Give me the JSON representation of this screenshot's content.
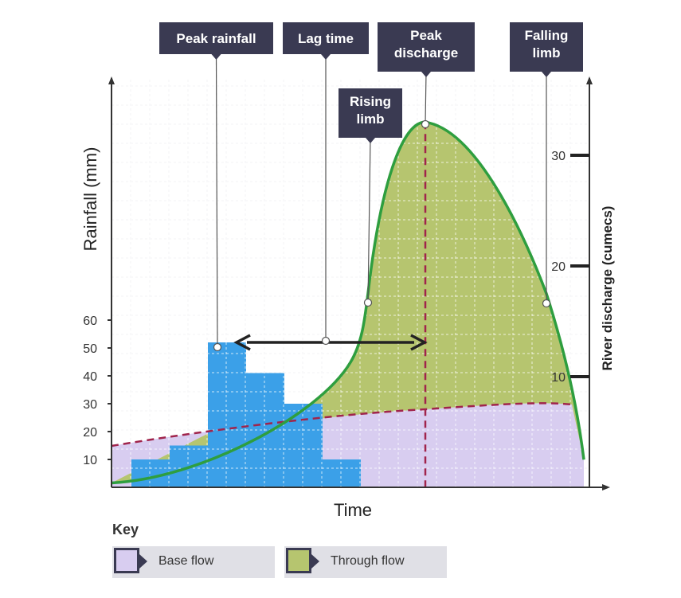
{
  "colors": {
    "base_flow": "#d8cdf0",
    "through_flow": "#b6c56f",
    "rainfall_bars": "#3ba0e8",
    "hydrograph_line": "#2e9e3f",
    "dashed": "#a0244c",
    "callout_bg": "#3a3a52",
    "grid": "#d0d0d8"
  },
  "chart_data": {
    "type": "area",
    "x_label": "Time",
    "y_left_label": "Rainfall (mm)",
    "y_right_label": "River discharge (cumecs)",
    "y_left_ticks": [
      "10",
      "20",
      "30",
      "40",
      "50",
      "60"
    ],
    "y_right_ticks": [
      "10",
      "20",
      "30"
    ],
    "rainfall_bars": [
      10,
      15,
      52,
      41,
      30,
      10
    ],
    "discharge_curve": {
      "start": 0.4,
      "rising_limb_point": 17.5,
      "peak": 33,
      "falling_limb_point": 17.5,
      "end": 2.5
    },
    "annotations": {
      "peak_rainfall": "Peak rainfall",
      "lag_time": "Lag time",
      "peak_discharge": "Peak discharge",
      "rising_limb": "Rising limb",
      "falling_limb": "Falling limb"
    }
  },
  "key": {
    "title": "Key",
    "items": [
      {
        "label": "Base flow"
      },
      {
        "label": "Through flow"
      }
    ]
  }
}
